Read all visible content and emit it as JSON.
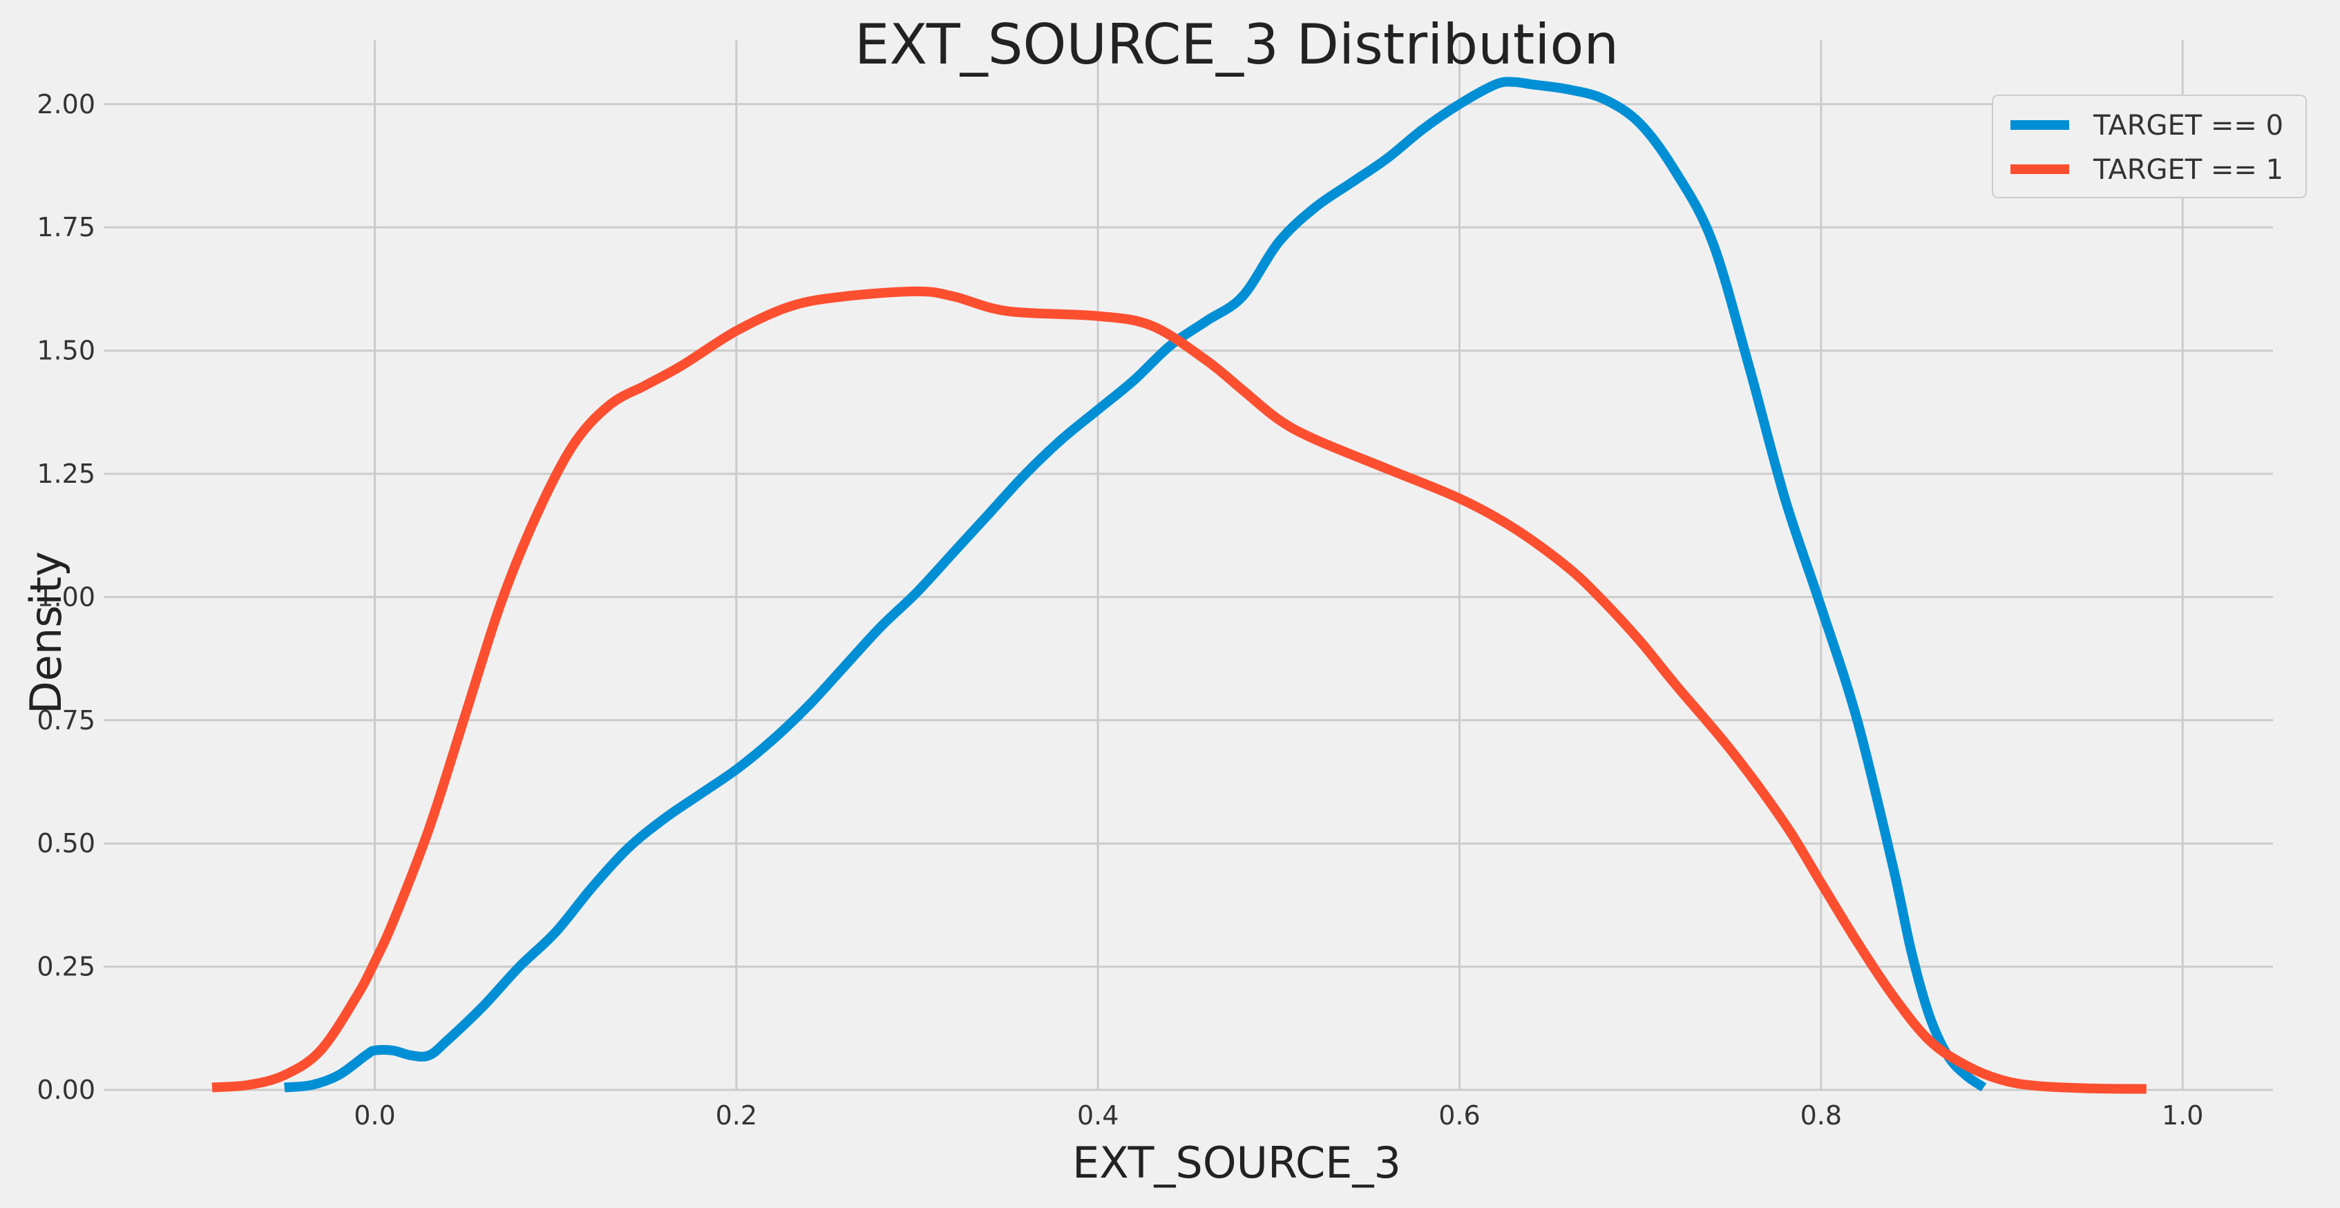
{
  "chart_data": {
    "type": "line",
    "title": "EXT_SOURCE_3 Distribution",
    "xlabel": "EXT_SOURCE_3",
    "ylabel": "Density",
    "xlim": [
      -0.15,
      1.05
    ],
    "ylim": [
      0,
      2.13
    ],
    "xticks": [
      0.0,
      0.2,
      0.4,
      0.6,
      0.8,
      1.0
    ],
    "xtick_labels": [
      "0.0",
      "0.2",
      "0.4",
      "0.6",
      "0.8",
      "1.0"
    ],
    "yticks": [
      0.0,
      0.25,
      0.5,
      0.75,
      1.0,
      1.25,
      1.5,
      1.75,
      2.0
    ],
    "ytick_labels": [
      "0.00",
      "0.25",
      "0.50",
      "0.75",
      "1.00",
      "1.25",
      "1.50",
      "1.75",
      "2.00"
    ],
    "grid": true,
    "legend_position": "top-right",
    "series": [
      {
        "name": "TARGET == 0",
        "color": "#008fd5",
        "x": [
          -0.05,
          -0.035,
          -0.02,
          -0.005,
          0.0,
          0.01,
          0.02,
          0.03,
          0.04,
          0.06,
          0.08,
          0.1,
          0.12,
          0.14,
          0.16,
          0.18,
          0.2,
          0.22,
          0.24,
          0.26,
          0.28,
          0.3,
          0.32,
          0.34,
          0.36,
          0.38,
          0.4,
          0.42,
          0.44,
          0.46,
          0.48,
          0.5,
          0.52,
          0.54,
          0.56,
          0.58,
          0.6,
          0.62,
          0.63,
          0.64,
          0.66,
          0.68,
          0.7,
          0.72,
          0.74,
          0.76,
          0.78,
          0.8,
          0.82,
          0.84,
          0.85,
          0.86,
          0.87,
          0.88,
          0.89
        ],
        "y": [
          0.005,
          0.01,
          0.03,
          0.07,
          0.08,
          0.08,
          0.07,
          0.07,
          0.1,
          0.17,
          0.25,
          0.32,
          0.41,
          0.49,
          0.55,
          0.6,
          0.65,
          0.71,
          0.78,
          0.86,
          0.94,
          1.01,
          1.09,
          1.17,
          1.25,
          1.32,
          1.38,
          1.44,
          1.51,
          1.56,
          1.61,
          1.72,
          1.79,
          1.84,
          1.89,
          1.95,
          2.0,
          2.04,
          2.045,
          2.04,
          2.03,
          2.01,
          1.96,
          1.86,
          1.72,
          1.47,
          1.2,
          0.98,
          0.75,
          0.45,
          0.28,
          0.15,
          0.07,
          0.03,
          0.005
        ]
      },
      {
        "name": "TARGET == 1",
        "color": "#fc4f30",
        "x": [
          -0.09,
          -0.07,
          -0.05,
          -0.03,
          -0.01,
          0.0,
          0.01,
          0.03,
          0.05,
          0.07,
          0.09,
          0.11,
          0.13,
          0.15,
          0.17,
          0.2,
          0.23,
          0.26,
          0.3,
          0.32,
          0.35,
          0.4,
          0.43,
          0.46,
          0.48,
          0.5,
          0.52,
          0.56,
          0.6,
          0.63,
          0.66,
          0.68,
          0.7,
          0.72,
          0.75,
          0.78,
          0.8,
          0.82,
          0.84,
          0.86,
          0.88,
          0.9,
          0.92,
          0.95,
          0.98
        ],
        "y": [
          0.005,
          0.01,
          0.03,
          0.08,
          0.19,
          0.26,
          0.34,
          0.53,
          0.76,
          0.99,
          1.17,
          1.31,
          1.39,
          1.43,
          1.47,
          1.54,
          1.59,
          1.61,
          1.62,
          1.61,
          1.58,
          1.57,
          1.55,
          1.48,
          1.42,
          1.36,
          1.32,
          1.26,
          1.2,
          1.14,
          1.06,
          0.99,
          0.91,
          0.82,
          0.69,
          0.54,
          0.42,
          0.3,
          0.19,
          0.1,
          0.05,
          0.02,
          0.008,
          0.003,
          0.002
        ]
      }
    ]
  }
}
